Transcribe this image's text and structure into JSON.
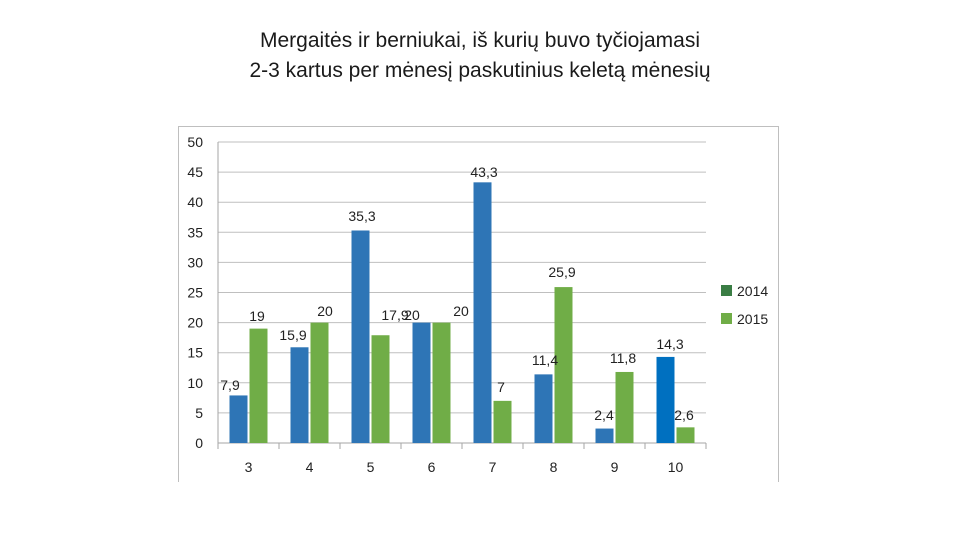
{
  "title": {
    "line1": "Mergaitės ir berniukai, iš kurių buvo tyčiojamasi",
    "line2": "2-3 kartus per mėnesį paskutinius keletą mėnesių"
  },
  "chart_data": {
    "type": "bar",
    "categories": [
      "3",
      "4",
      "5",
      "6",
      "7",
      "8",
      "9",
      "10"
    ],
    "series": [
      {
        "name": "2014",
        "values": [
          7.9,
          15.9,
          35.3,
          20,
          43.3,
          11.4,
          2.4,
          14.3
        ],
        "labels": [
          "7,9",
          "15,9",
          "35,3",
          "20",
          "43,3",
          "11,4",
          "2,4",
          "14,3"
        ],
        "color": "#2e75b6",
        "legend_color": "#3a7d44"
      },
      {
        "name": "2015",
        "values": [
          19,
          20,
          17.9,
          20,
          7,
          25.9,
          11.8,
          2.6
        ],
        "labels": [
          "19",
          "20",
          "17,9",
          "20",
          "7",
          "25,9",
          "11,8",
          "2,6"
        ],
        "color": "#70ad47",
        "legend_color": "#70ad47"
      }
    ],
    "last_bar_2014_color": "#0070c0",
    "yticks": [
      "0",
      "5",
      "10",
      "15",
      "20",
      "25",
      "30",
      "35",
      "40",
      "45",
      "50"
    ],
    "ylim": [
      0,
      50
    ],
    "grid": true,
    "legend_position": "right",
    "title": "Mergaitės ir berniukai, iš kurių buvo tyčiojamasi 2-3 kartus per mėnesį paskutinius keletą mėnesių",
    "xlabel": "",
    "ylabel": ""
  }
}
